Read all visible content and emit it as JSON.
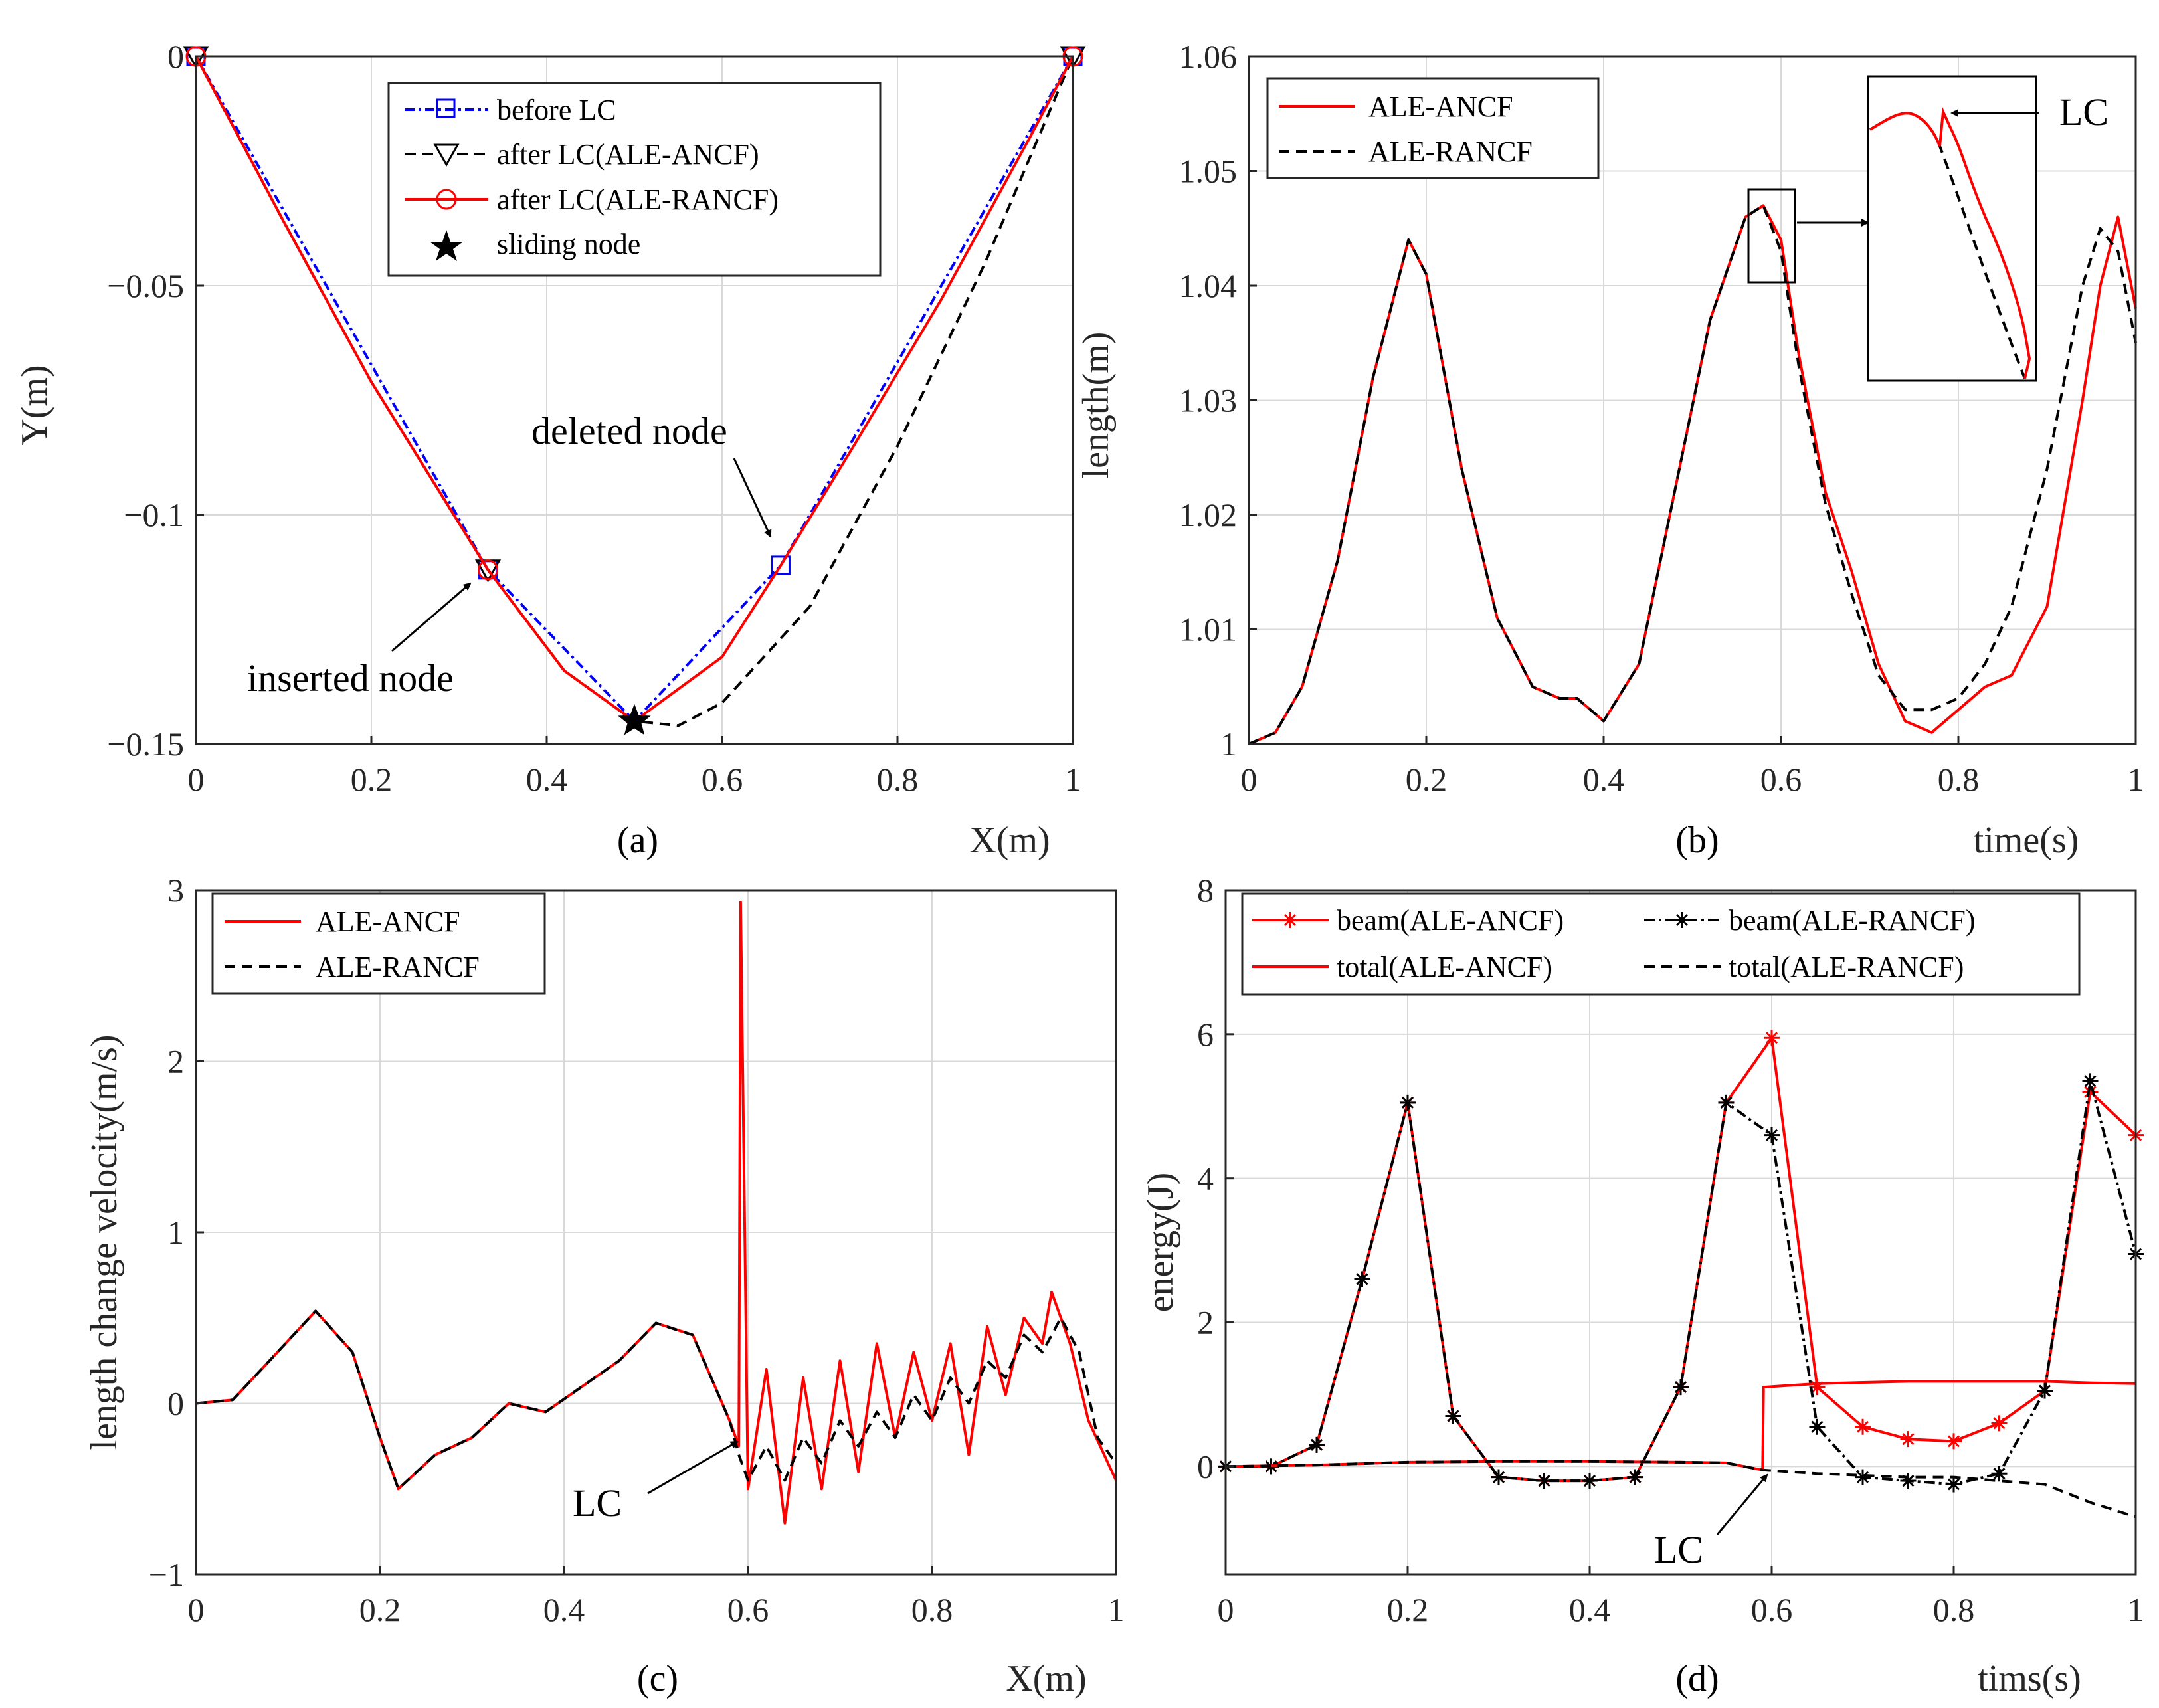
{
  "figure": {
    "panels": [
      {
        "id": "a",
        "panel_label": "(a)",
        "xlabel": "X(m)",
        "ylabel": "Y(m)",
        "xlim": [
          0,
          1
        ],
        "ylim": [
          -0.15,
          0
        ],
        "xticks": [
          0,
          0.2,
          0.4,
          0.6,
          0.8,
          1
        ],
        "xtick_labels": [
          "0",
          "0.2",
          "0.4",
          "0.6",
          "0.8",
          "1"
        ],
        "yticks": [
          0,
          -0.05,
          -0.1,
          -0.15
        ],
        "ytick_labels": [
          "0",
          "−0.05",
          "−0.1",
          "−0.15"
        ],
        "legend": [
          "before LC",
          "after LC(ALE-ANCF)",
          "after LC(ALE-RANCF)",
          "sliding node"
        ],
        "annotations": [
          "deleted node",
          "inserted node"
        ]
      },
      {
        "id": "b",
        "panel_label": "(b)",
        "xlabel": "time(s)",
        "ylabel": "length(m)",
        "xlim": [
          0,
          1
        ],
        "ylim": [
          1,
          1.06
        ],
        "xticks": [
          0,
          0.2,
          0.4,
          0.6,
          0.8,
          1
        ],
        "xtick_labels": [
          "0",
          "0.2",
          "0.4",
          "0.6",
          "0.8",
          "1"
        ],
        "yticks": [
          1,
          1.01,
          1.02,
          1.03,
          1.04,
          1.05,
          1.06
        ],
        "ytick_labels": [
          "1",
          "1.01",
          "1.02",
          "1.03",
          "1.04",
          "1.05",
          "1.06"
        ],
        "legend": [
          "ALE-ANCF",
          "ALE-RANCF"
        ],
        "annotations": [
          "LC"
        ]
      },
      {
        "id": "c",
        "panel_label": "(c)",
        "xlabel": "X(m)",
        "ylabel": "length change velocity(m/s)",
        "xlim": [
          0,
          1
        ],
        "ylim": [
          -1,
          3
        ],
        "xticks": [
          0,
          0.2,
          0.4,
          0.6,
          0.8,
          1
        ],
        "xtick_labels": [
          "0",
          "0.2",
          "0.4",
          "0.6",
          "0.8",
          "1"
        ],
        "yticks": [
          -1,
          0,
          1,
          2,
          3
        ],
        "ytick_labels": [
          "−1",
          "0",
          "1",
          "2",
          "3"
        ],
        "legend": [
          "ALE-ANCF",
          "ALE-RANCF"
        ],
        "annotations": [
          "LC"
        ]
      },
      {
        "id": "d",
        "panel_label": "(d)",
        "xlabel": "tims(s)",
        "ylabel": "energy(J)",
        "xlim": [
          0,
          1
        ],
        "ylim": [
          -1.5,
          8
        ],
        "xticks": [
          0,
          0.2,
          0.4,
          0.6,
          0.8,
          1
        ],
        "xtick_labels": [
          "0",
          "0.2",
          "0.4",
          "0.6",
          "0.8",
          "1"
        ],
        "yticks": [
          0,
          2,
          4,
          6,
          8
        ],
        "ytick_labels": [
          "0",
          "2",
          "4",
          "6",
          "8"
        ],
        "legend": [
          "beam(ALE-ANCF)",
          "beam(ALE-RANCF)",
          "total(ALE-ANCF)",
          "total(ALE-RANCF)"
        ],
        "annotations": [
          "LC"
        ]
      }
    ]
  },
  "colors": {
    "red": "#ff0000",
    "black": "#000000",
    "blue": "#0000ff",
    "grid": "#d9d9d9",
    "axis": "#262626"
  },
  "chart_data": [
    {
      "type": "line",
      "panel": "a",
      "series": [
        {
          "name": "before LC",
          "x": [
            0,
            0.333,
            0.5,
            0.667,
            1
          ],
          "y": [
            0,
            -0.112,
            -0.145,
            -0.111,
            0
          ]
        },
        {
          "name": "after LC(ALE-ANCF)",
          "x": [
            0,
            0.1,
            0.2,
            0.333,
            0.42,
            0.5,
            0.55,
            0.6,
            0.7,
            0.8,
            0.9,
            1
          ],
          "y": [
            0,
            -0.036,
            -0.071,
            -0.112,
            -0.134,
            -0.145,
            -0.146,
            -0.141,
            -0.12,
            -0.085,
            -0.045,
            0
          ]
        },
        {
          "name": "after LC(ALE-RANCF)",
          "x": [
            0,
            0.1,
            0.2,
            0.333,
            0.42,
            0.5,
            0.6,
            0.667,
            0.75,
            0.85,
            0.95,
            1
          ],
          "y": [
            0,
            -0.036,
            -0.071,
            -0.112,
            -0.134,
            -0.145,
            -0.131,
            -0.111,
            -0.085,
            -0.053,
            -0.018,
            0
          ]
        },
        {
          "name": "sliding node",
          "x": [
            0.5
          ],
          "y": [
            -0.145
          ]
        }
      ]
    },
    {
      "type": "line",
      "panel": "b",
      "series": [
        {
          "name": "ALE-ANCF",
          "x": [
            0,
            0.03,
            0.06,
            0.1,
            0.14,
            0.18,
            0.2,
            0.24,
            0.28,
            0.32,
            0.35,
            0.37,
            0.4,
            0.44,
            0.48,
            0.52,
            0.56,
            0.58,
            0.6,
            0.62,
            0.65,
            0.68,
            0.71,
            0.74,
            0.77,
            0.8,
            0.83,
            0.86,
            0.9,
            0.94,
            0.96,
            0.98,
            1
          ],
          "y": [
            1.0,
            1.001,
            1.005,
            1.016,
            1.032,
            1.044,
            1.041,
            1.024,
            1.011,
            1.005,
            1.004,
            1.004,
            1.002,
            1.007,
            1.022,
            1.037,
            1.046,
            1.047,
            1.044,
            1.034,
            1.022,
            1.015,
            1.007,
            1.002,
            1.001,
            1.003,
            1.005,
            1.006,
            1.012,
            1.03,
            1.04,
            1.046,
            1.038
          ]
        },
        {
          "name": "ALE-RANCF",
          "x": [
            0,
            0.03,
            0.06,
            0.1,
            0.14,
            0.18,
            0.2,
            0.24,
            0.28,
            0.32,
            0.35,
            0.37,
            0.4,
            0.44,
            0.48,
            0.52,
            0.56,
            0.58,
            0.6,
            0.62,
            0.65,
            0.68,
            0.71,
            0.74,
            0.77,
            0.8,
            0.83,
            0.86,
            0.9,
            0.94,
            0.96,
            0.98,
            1
          ],
          "y": [
            1.0,
            1.001,
            1.005,
            1.016,
            1.032,
            1.044,
            1.041,
            1.024,
            1.011,
            1.005,
            1.004,
            1.004,
            1.002,
            1.007,
            1.022,
            1.037,
            1.046,
            1.047,
            1.043,
            1.033,
            1.021,
            1.013,
            1.006,
            1.003,
            1.003,
            1.004,
            1.007,
            1.012,
            1.024,
            1.04,
            1.045,
            1.043,
            1.035
          ]
        }
      ]
    },
    {
      "type": "line",
      "panel": "c",
      "series": [
        {
          "name": "ALE-ANCF",
          "x": [
            0,
            0.04,
            0.08,
            0.13,
            0.17,
            0.2,
            0.22,
            0.26,
            0.3,
            0.34,
            0.38,
            0.42,
            0.46,
            0.5,
            0.54,
            0.58,
            0.59,
            0.592,
            0.6,
            0.62,
            0.64,
            0.66,
            0.68,
            0.7,
            0.72,
            0.74,
            0.76,
            0.78,
            0.8,
            0.82,
            0.84,
            0.86,
            0.88,
            0.9,
            0.92,
            0.93,
            0.95,
            0.97,
            1
          ],
          "y": [
            0,
            0.02,
            0.25,
            0.54,
            0.3,
            -0.2,
            -0.5,
            -0.3,
            -0.2,
            0,
            -0.05,
            0.1,
            0.25,
            0.47,
            0.4,
            -0.1,
            -0.25,
            2.93,
            -0.5,
            0.2,
            -0.7,
            0.15,
            -0.5,
            0.25,
            -0.4,
            0.35,
            -0.2,
            0.3,
            -0.1,
            0.35,
            -0.3,
            0.45,
            0.05,
            0.5,
            0.35,
            0.65,
            0.35,
            -0.1,
            -0.45
          ]
        },
        {
          "name": "ALE-RANCF",
          "x": [
            0,
            0.04,
            0.08,
            0.13,
            0.17,
            0.2,
            0.22,
            0.26,
            0.3,
            0.34,
            0.38,
            0.42,
            0.46,
            0.5,
            0.54,
            0.58,
            0.59,
            0.6,
            0.62,
            0.64,
            0.66,
            0.68,
            0.7,
            0.72,
            0.74,
            0.76,
            0.78,
            0.8,
            0.82,
            0.84,
            0.86,
            0.88,
            0.9,
            0.92,
            0.94,
            0.96,
            0.98,
            1
          ],
          "y": [
            0,
            0.02,
            0.25,
            0.54,
            0.3,
            -0.2,
            -0.5,
            -0.3,
            -0.2,
            0,
            -0.05,
            0.1,
            0.25,
            0.47,
            0.4,
            -0.1,
            -0.3,
            -0.45,
            -0.25,
            -0.45,
            -0.2,
            -0.35,
            -0.1,
            -0.25,
            -0.05,
            -0.2,
            0.05,
            -0.1,
            0.15,
            0.0,
            0.25,
            0.15,
            0.4,
            0.3,
            0.5,
            0.3,
            -0.2,
            -0.35
          ]
        }
      ]
    },
    {
      "type": "line",
      "panel": "d",
      "series": [
        {
          "name": "beam(ALE-ANCF)",
          "x": [
            0,
            0.05,
            0.1,
            0.15,
            0.2,
            0.25,
            0.3,
            0.35,
            0.4,
            0.45,
            0.5,
            0.55,
            0.6,
            0.65,
            0.7,
            0.75,
            0.8,
            0.85,
            0.9,
            0.95,
            1
          ],
          "y": [
            0,
            0,
            0.3,
            2.6,
            5.05,
            0.7,
            -0.15,
            -0.2,
            -0.2,
            -0.15,
            1.1,
            5.05,
            5.95,
            1.1,
            0.55,
            0.38,
            0.35,
            0.6,
            1.05,
            5.2,
            4.6
          ]
        },
        {
          "name": "beam(ALE-RANCF)",
          "x": [
            0,
            0.05,
            0.1,
            0.15,
            0.2,
            0.25,
            0.3,
            0.35,
            0.4,
            0.45,
            0.5,
            0.55,
            0.6,
            0.65,
            0.7,
            0.75,
            0.8,
            0.85,
            0.9,
            0.95,
            1
          ],
          "y": [
            0,
            0,
            0.3,
            2.6,
            5.05,
            0.7,
            -0.15,
            -0.2,
            -0.2,
            -0.15,
            1.1,
            5.05,
            4.6,
            0.55,
            -0.15,
            -0.2,
            -0.25,
            -0.1,
            1.05,
            5.35,
            2.95
          ]
        },
        {
          "name": "total(ALE-ANCF)",
          "x": [
            0,
            0.1,
            0.2,
            0.3,
            0.4,
            0.5,
            0.55,
            0.59,
            0.591,
            0.65,
            0.75,
            0.85,
            0.9,
            0.95,
            1
          ],
          "y": [
            0,
            0.02,
            0.06,
            0.07,
            0.07,
            0.06,
            0.05,
            -0.05,
            1.1,
            1.15,
            1.18,
            1.18,
            1.18,
            1.16,
            1.15
          ]
        },
        {
          "name": "total(ALE-RANCF)",
          "x": [
            0,
            0.1,
            0.2,
            0.3,
            0.4,
            0.5,
            0.55,
            0.59,
            0.65,
            0.75,
            0.8,
            0.85,
            0.9,
            0.95,
            1
          ],
          "y": [
            0,
            0.02,
            0.06,
            0.07,
            0.07,
            0.06,
            0.05,
            -0.05,
            -0.1,
            -0.15,
            -0.15,
            -0.2,
            -0.25,
            -0.5,
            -0.7
          ]
        }
      ]
    }
  ]
}
